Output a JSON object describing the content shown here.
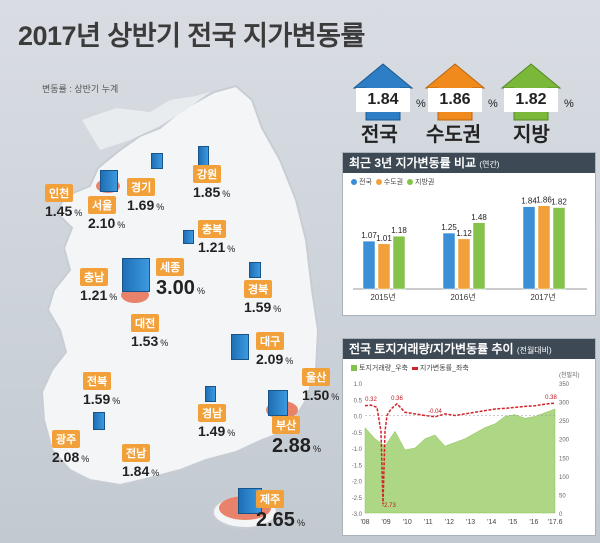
{
  "title": "2017년 상반기 전국 지가변동률",
  "note": "변동률 : 상반기 누계",
  "summary": [
    {
      "value": "1.84",
      "unit": "%",
      "label": "전국",
      "color": "#2d7ec4"
    },
    {
      "value": "1.86",
      "unit": "%",
      "label": "수도권",
      "color": "#f08a1c"
    },
    {
      "value": "1.82",
      "unit": "%",
      "label": "지방",
      "color": "#7ab83a"
    }
  ],
  "regions": [
    {
      "name": "인천",
      "value": "1.45",
      "unit": "%"
    },
    {
      "name": "서울",
      "value": "2.10",
      "unit": "%"
    },
    {
      "name": "경기",
      "value": "1.69",
      "unit": "%"
    },
    {
      "name": "강원",
      "value": "1.85",
      "unit": "%"
    },
    {
      "name": "충북",
      "value": "1.21",
      "unit": "%"
    },
    {
      "name": "세종",
      "value": "3.00",
      "unit": "%"
    },
    {
      "name": "충남",
      "value": "1.21",
      "unit": "%"
    },
    {
      "name": "경북",
      "value": "1.59",
      "unit": "%"
    },
    {
      "name": "대전",
      "value": "1.53",
      "unit": "%"
    },
    {
      "name": "대구",
      "value": "2.09",
      "unit": "%"
    },
    {
      "name": "전북",
      "value": "1.59",
      "unit": "%"
    },
    {
      "name": "울산",
      "value": "1.50",
      "unit": "%"
    },
    {
      "name": "경남",
      "value": "1.49",
      "unit": "%"
    },
    {
      "name": "부산",
      "value": "2.88",
      "unit": "%"
    },
    {
      "name": "광주",
      "value": "2.08",
      "unit": "%"
    },
    {
      "name": "전남",
      "value": "1.84",
      "unit": "%"
    },
    {
      "name": "제주",
      "value": "2.65",
      "unit": "%"
    }
  ],
  "chart_data": [
    {
      "type": "bar",
      "title": "최근 3년 지가변동률 비교",
      "subtitle": "(연간)",
      "categories": [
        "2015년",
        "2016년",
        "2017년"
      ],
      "series": [
        {
          "name": "전국",
          "values": [
            1.07,
            1.25,
            1.84
          ],
          "color": "#3a8fd6"
        },
        {
          "name": "수도권",
          "values": [
            1.01,
            1.12,
            1.86
          ],
          "color": "#f2a13a"
        },
        {
          "name": "지방권",
          "values": [
            1.18,
            1.48,
            1.82
          ],
          "color": "#84c24a"
        }
      ],
      "labels": [
        [
          "1.07",
          "1.01",
          "1.18"
        ],
        [
          "1.25",
          "1.12",
          "1.48"
        ],
        [
          "1.84",
          "1.86",
          "1.82"
        ]
      ],
      "ylim": [
        0,
        2.1
      ]
    },
    {
      "type": "area",
      "title": "전국 토지거래량/지가변동률 추이",
      "subtitle": "(전월대비)",
      "legend": [
        "토지거래량_우축",
        "지가변동률_좌축"
      ],
      "x_ticks": [
        "'08",
        "'09",
        "'10",
        "'11",
        "'12",
        "'13",
        "'14",
        "'15",
        "'16",
        "'17.6"
      ],
      "y_left_ticks": [
        "1.0",
        "0.5",
        "0.0",
        "-0.5",
        "-1.0",
        "-1.5",
        "-2.0",
        "-2.5",
        "-3.0"
      ],
      "y_left_range": [
        -3.0,
        1.0
      ],
      "y_right_unit": "(천필지)",
      "y_right_ticks": [
        "350",
        "300",
        "250",
        "200",
        "150",
        "100",
        "50",
        "0"
      ],
      "y_right_range": [
        0,
        350
      ],
      "annotations": [
        "0.32",
        "-2.73",
        "0.36",
        "-0.04",
        "0.38"
      ],
      "rate_series": {
        "name": "지가변동률_좌축",
        "x": [
          2008.0,
          2008.3,
          2008.6,
          2008.8,
          2008.9,
          2009.0,
          2009.1,
          2009.3,
          2009.6,
          2010.0,
          2010.5,
          2011.0,
          2011.5,
          2012.0,
          2012.5,
          2013.0,
          2013.5,
          2014.0,
          2014.5,
          2015.0,
          2015.5,
          2016.0,
          2016.5,
          2017.0,
          2017.5
        ],
        "y": [
          0.3,
          0.32,
          0.25,
          -0.5,
          -2.73,
          -0.5,
          0.0,
          0.2,
          0.36,
          0.1,
          0.05,
          0.0,
          -0.04,
          0.05,
          0.0,
          0.05,
          0.1,
          0.15,
          0.2,
          0.22,
          0.25,
          0.28,
          0.3,
          0.35,
          0.38
        ]
      },
      "volume_series": {
        "name": "토지거래량_우축",
        "x": [
          2008.0,
          2008.5,
          2009.0,
          2009.5,
          2010.0,
          2010.5,
          2011.0,
          2011.5,
          2012.0,
          2012.5,
          2013.0,
          2013.5,
          2014.0,
          2014.5,
          2015.0,
          2015.5,
          2016.0,
          2016.5,
          2017.0,
          2017.5
        ],
        "y": [
          230,
          200,
          180,
          220,
          170,
          175,
          200,
          210,
          180,
          190,
          200,
          215,
          230,
          240,
          260,
          265,
          255,
          260,
          270,
          280
        ]
      }
    }
  ]
}
